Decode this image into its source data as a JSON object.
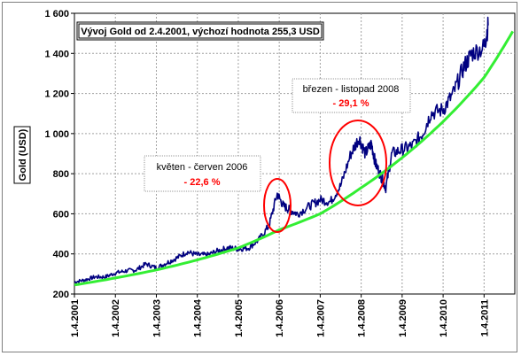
{
  "chart_data": {
    "type": "line",
    "title": "Vývoj Gold od 2.4.2001, výchozí hodnota 255,3 USD",
    "ylabel": "Gold (USD)",
    "xlabel": "",
    "ylim": [
      200,
      1600
    ],
    "y_ticks": [
      "200",
      "400",
      "600",
      "800",
      "1 000",
      "1 200",
      "1 400",
      "1 600"
    ],
    "y_tick_values": [
      200,
      400,
      600,
      800,
      1000,
      1200,
      1400,
      1600
    ],
    "x_ticks": [
      "1.4.2001",
      "1.4.2002",
      "1.4.2003",
      "1.4.2004",
      "1.4.2005",
      "1.4.2006",
      "1.4.2007",
      "1.4.2008",
      "1.4.2009",
      "1.4.2010",
      "1.4.2011"
    ],
    "x_tick_years": [
      2001.25,
      2002.25,
      2003.25,
      2004.25,
      2005.25,
      2006.25,
      2007.25,
      2008.25,
      2009.25,
      2010.25,
      2011.25
    ],
    "xlim_years": [
      2001.25,
      2012.0
    ],
    "grid": true,
    "series": [
      {
        "color": "#000080",
        "x": [
          2001.25,
          2001.5,
          2001.75,
          2002.0,
          2002.25,
          2002.5,
          2002.75,
          2003.0,
          2003.25,
          2003.5,
          2003.75,
          2004.0,
          2004.25,
          2004.5,
          2004.75,
          2005.0,
          2005.25,
          2005.5,
          2005.75,
          2006.0,
          2006.2,
          2006.35,
          2006.5,
          2006.7,
          2007.0,
          2007.25,
          2007.5,
          2007.75,
          2008.0,
          2008.2,
          2008.35,
          2008.5,
          2008.6,
          2008.75,
          2008.85,
          2009.0,
          2009.25,
          2009.5,
          2009.75,
          2009.95,
          2010.25,
          2010.5,
          2010.75,
          2010.95,
          2011.25,
          2011.35
        ],
        "values": [
          260,
          270,
          285,
          285,
          305,
          315,
          320,
          350,
          330,
          355,
          380,
          410,
          395,
          395,
          415,
          430,
          425,
          430,
          470,
          540,
          700,
          640,
          620,
          600,
          640,
          670,
          660,
          740,
          900,
          980,
          900,
          950,
          850,
          780,
          730,
          900,
          920,
          940,
          1000,
          1100,
          1120,
          1200,
          1330,
          1400,
          1430,
          1540
        ]
      },
      {
        "color": "#33ee33",
        "x": [
          2001.25,
          2002.25,
          2003.25,
          2004.25,
          2005.25,
          2006.25,
          2007.25,
          2008.25,
          2009.25,
          2010.25,
          2011.25,
          2011.95
        ],
        "values": [
          245,
          280,
          320,
          370,
          430,
          520,
          600,
          730,
          880,
          1060,
          1280,
          1510
        ]
      }
    ],
    "annotations": [
      {
        "label": "květen - červen 2006",
        "value": "- 22,6 %"
      },
      {
        "label": "březen - listopad 2008",
        "value": "- 29,1 %"
      }
    ],
    "highlight_color": "#ff0000"
  }
}
